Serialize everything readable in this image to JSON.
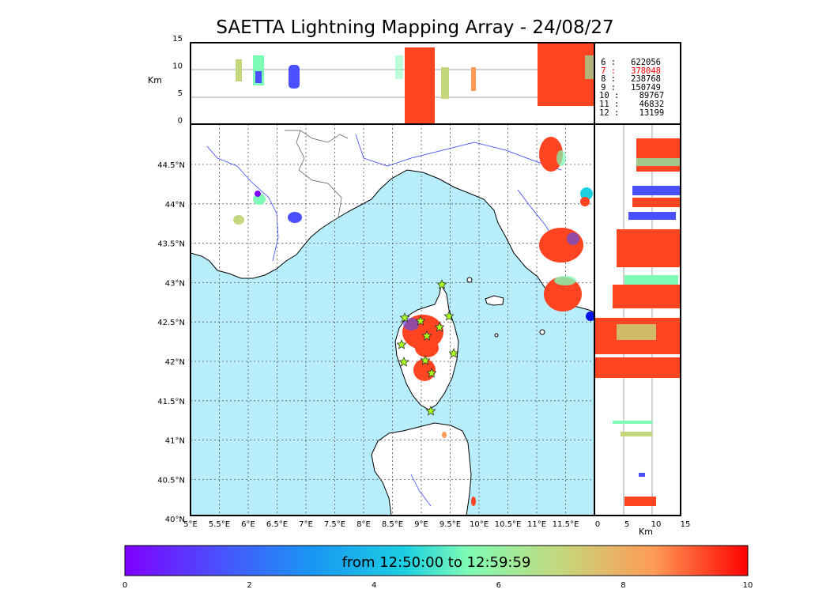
{
  "title": "SAETTA Lightning Mapping Array - 24/08/27",
  "altitude_panel": {
    "unit_label": "Km",
    "ticks": [
      "15",
      "10",
      "5",
      "0"
    ]
  },
  "side_panel": {
    "unit_label": "Km",
    "ticks": [
      "0",
      "5",
      "10",
      "15"
    ]
  },
  "map": {
    "lon_ticks": [
      "5°E",
      "5.5°E",
      "6°E",
      "6.5°E",
      "7°E",
      "7.5°E",
      "8°E",
      "8.5°E",
      "9°E",
      "9.5°E",
      "10°E",
      "10.5°E",
      "11°E",
      "11.5°E"
    ],
    "lat_ticks": [
      "44.5°N",
      "44°N",
      "43.5°N",
      "43°N",
      "42.5°N",
      "42°N",
      "41.5°N",
      "41°N",
      "40.5°N",
      "40°N"
    ],
    "sea_color": "#b8eefc",
    "land_color": "#ffffff",
    "station_marker": "star-icon",
    "station_color": "#aaff22"
  },
  "source_counts": [
    {
      "label": "6 :   622056",
      "color": "#000000"
    },
    {
      "label": "7 :   378048",
      "color": "#ff0000"
    },
    {
      "label": "8 :   238768",
      "color": "#000000"
    },
    {
      "label": "9 :   150749",
      "color": "#000000"
    },
    {
      "label": "10 :    89767",
      "color": "#000000"
    },
    {
      "label": "11 :    46832",
      "color": "#000000"
    },
    {
      "label": "12 :    13199",
      "color": "#000000"
    }
  ],
  "colorbar": {
    "label": "from 12:50:00 to 12:59:59",
    "ticks": [
      "0",
      "2",
      "4",
      "6",
      "8",
      "10"
    ],
    "colormap": "rainbow"
  }
}
